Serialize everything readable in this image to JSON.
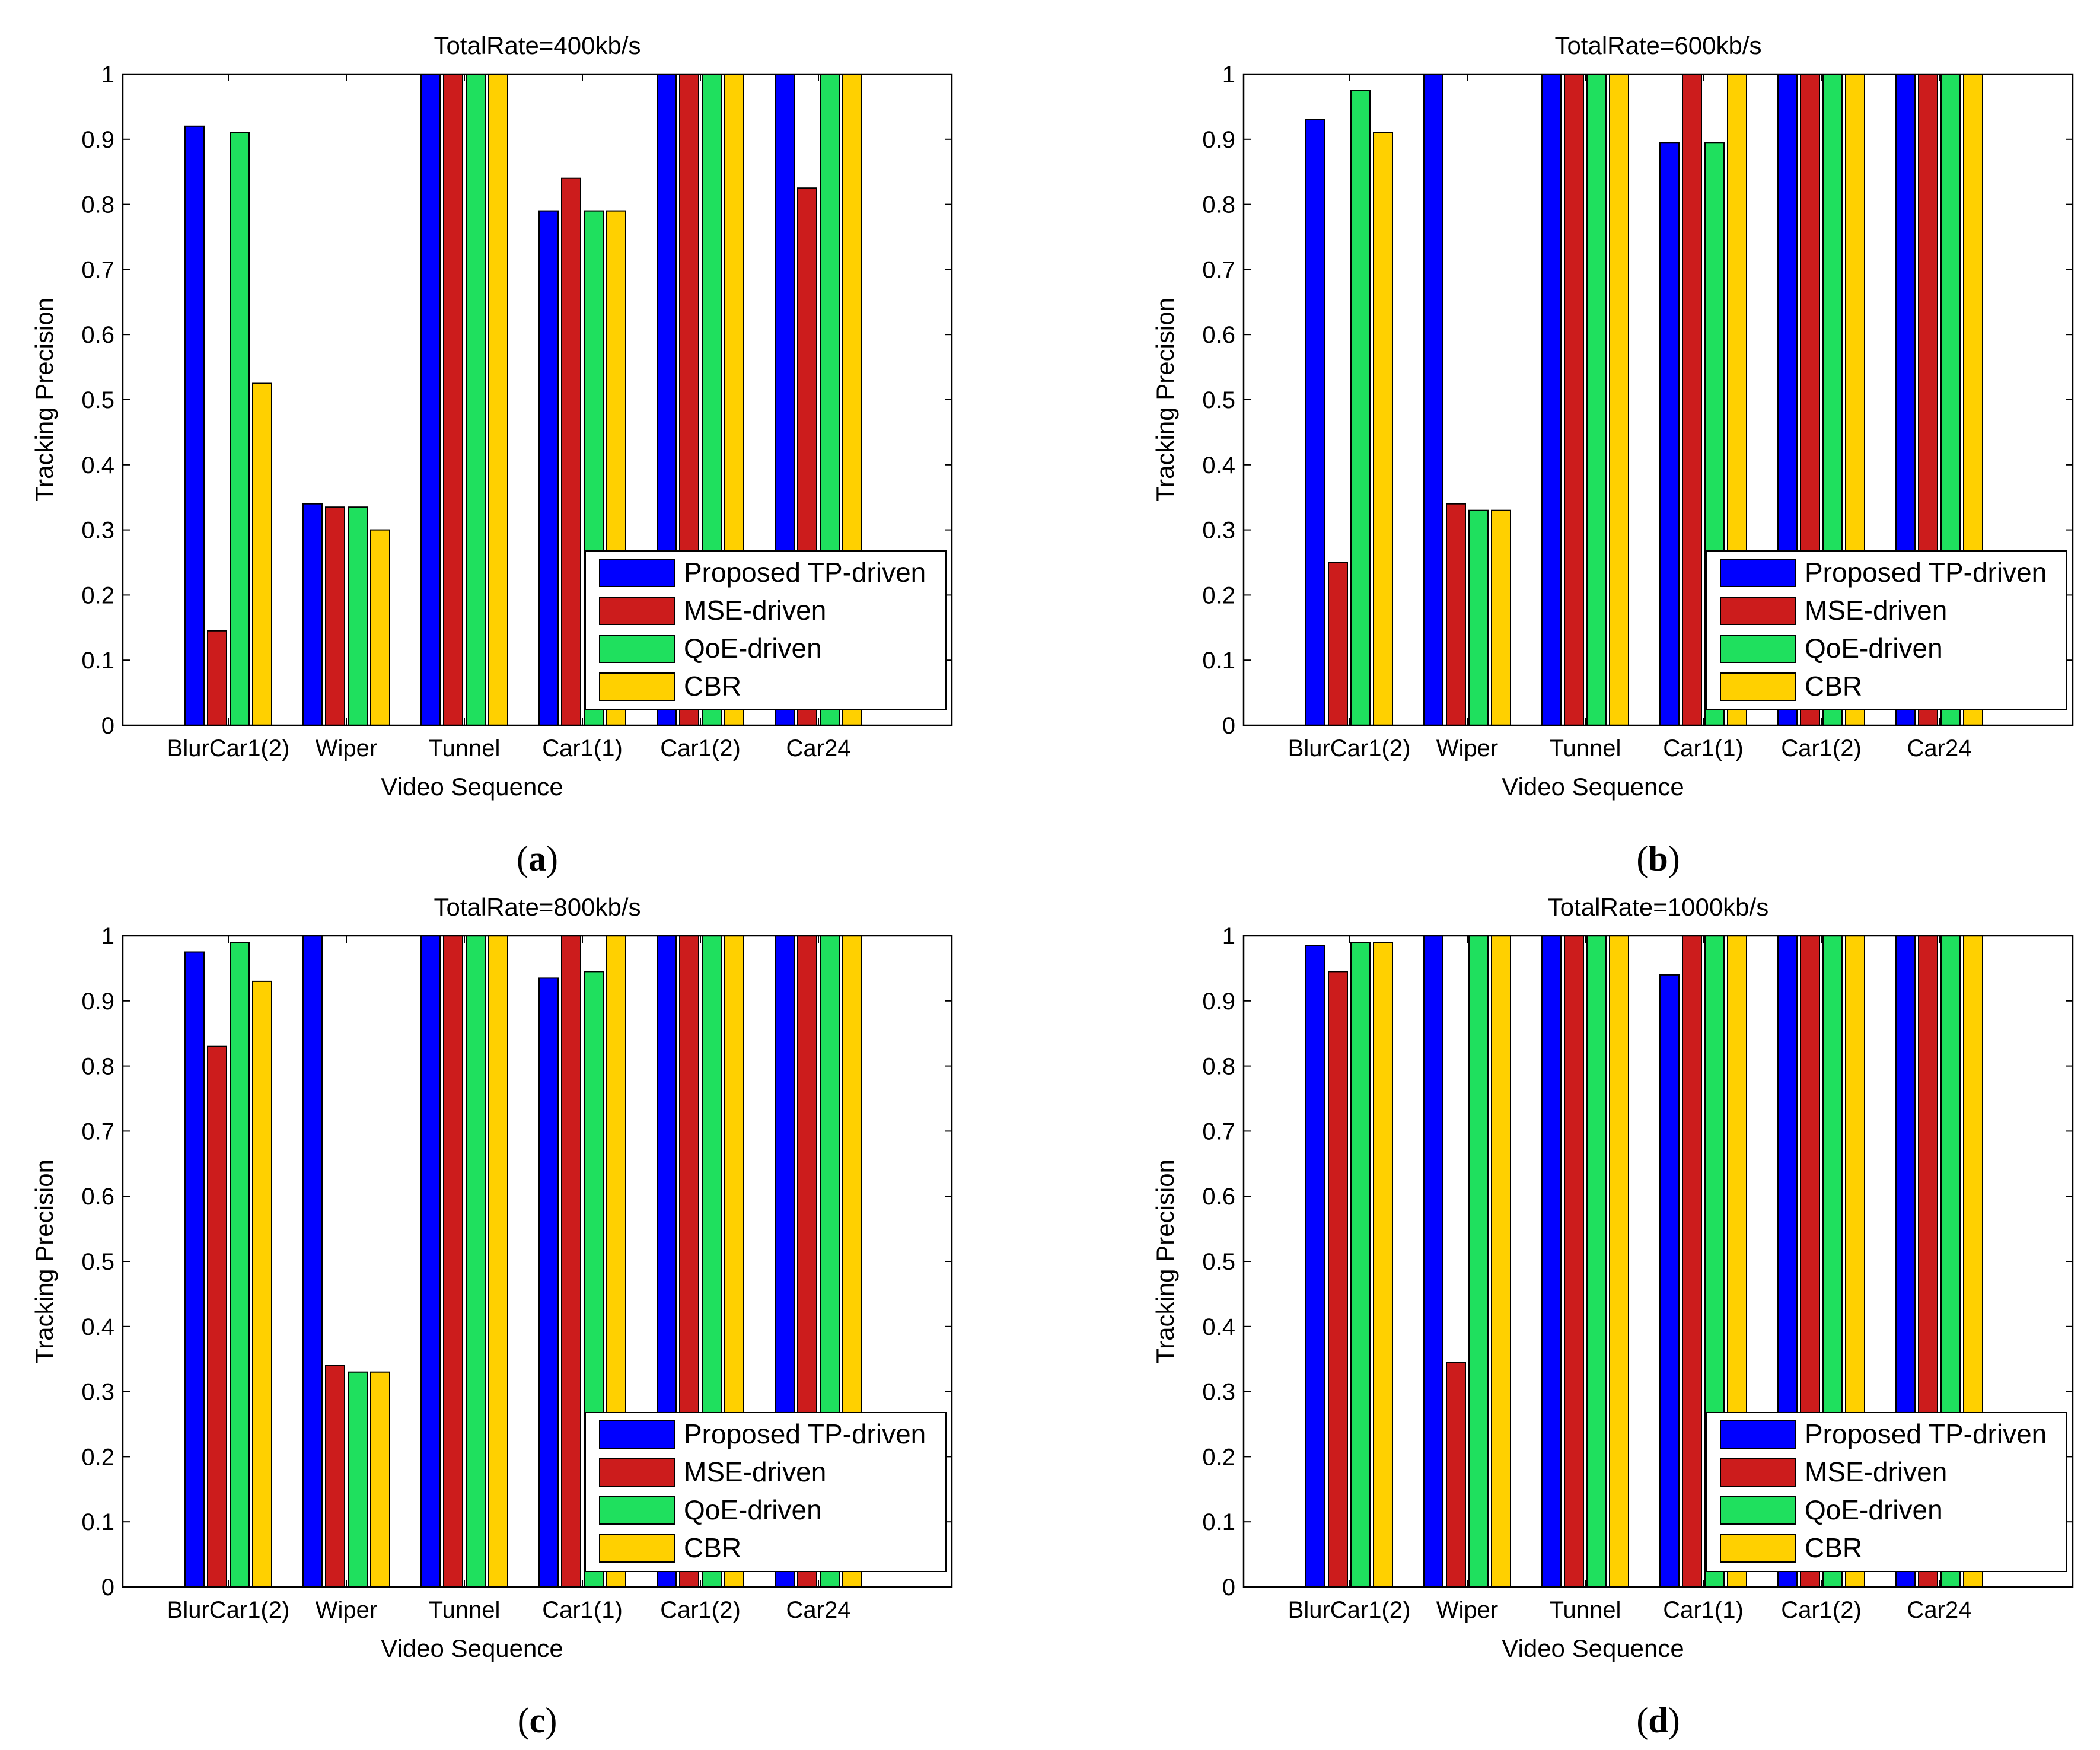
{
  "figure": {
    "series_colors": {
      "Proposed TP-driven": "#0000FF",
      "MSE-driven": "#CC1C1C",
      "QoE-driven": "#1FE05E",
      "CBR": "#FFD000"
    },
    "caption_open": "(",
    "caption_close": ")"
  },
  "chart_data": [
    {
      "panel": "a",
      "type": "bar",
      "title": "TotalRate=400kb/s",
      "xlabel": "Video Sequence",
      "ylabel": "Tracking Precision",
      "ylim": [
        0,
        1
      ],
      "yticks": [
        "0",
        "0.1",
        "0.2",
        "0.3",
        "0.4",
        "0.5",
        "0.6",
        "0.7",
        "0.8",
        "0.9",
        "1"
      ],
      "categories": [
        "BlurCar1(2)",
        "Wiper",
        "Tunnel",
        "Car1(1)",
        "Car1(2)",
        "Car24"
      ],
      "legend_position": "bottom-right",
      "series": [
        {
          "name": "Proposed TP-driven",
          "values": [
            0.92,
            0.34,
            1.0,
            0.79,
            1.0,
            1.0
          ]
        },
        {
          "name": "MSE-driven",
          "values": [
            0.145,
            0.335,
            1.0,
            0.84,
            1.0,
            0.825
          ]
        },
        {
          "name": "QoE-driven",
          "values": [
            0.91,
            0.335,
            1.0,
            0.79,
            1.0,
            1.0
          ]
        },
        {
          "name": "CBR",
          "values": [
            0.525,
            0.3,
            1.0,
            0.79,
            1.0,
            1.0
          ]
        }
      ]
    },
    {
      "panel": "b",
      "type": "bar",
      "title": "TotalRate=600kb/s",
      "xlabel": "Video Sequence",
      "ylabel": "Tracking Precision",
      "ylim": [
        0,
        1
      ],
      "yticks": [
        "0",
        "0.1",
        "0.2",
        "0.3",
        "0.4",
        "0.5",
        "0.6",
        "0.7",
        "0.8",
        "0.9",
        "1"
      ],
      "categories": [
        "BlurCar1(2)",
        "Wiper",
        "Tunnel",
        "Car1(1)",
        "Car1(2)",
        "Car24"
      ],
      "legend_position": "bottom-right",
      "series": [
        {
          "name": "Proposed TP-driven",
          "values": [
            0.93,
            1.0,
            1.0,
            0.895,
            1.0,
            1.0
          ]
        },
        {
          "name": "MSE-driven",
          "values": [
            0.25,
            0.34,
            1.0,
            1.0,
            1.0,
            1.0
          ]
        },
        {
          "name": "QoE-driven",
          "values": [
            0.975,
            0.33,
            1.0,
            0.895,
            1.0,
            1.0
          ]
        },
        {
          "name": "CBR",
          "values": [
            0.91,
            0.33,
            1.0,
            1.0,
            1.0,
            1.0
          ]
        }
      ]
    },
    {
      "panel": "c",
      "type": "bar",
      "title": "TotalRate=800kb/s",
      "xlabel": "Video Sequence",
      "ylabel": "Tracking Precision",
      "ylim": [
        0,
        1
      ],
      "yticks": [
        "0",
        "0.1",
        "0.2",
        "0.3",
        "0.4",
        "0.5",
        "0.6",
        "0.7",
        "0.8",
        "0.9",
        "1"
      ],
      "categories": [
        "BlurCar1(2)",
        "Wiper",
        "Tunnel",
        "Car1(1)",
        "Car1(2)",
        "Car24"
      ],
      "legend_position": "bottom-right",
      "series": [
        {
          "name": "Proposed TP-driven",
          "values": [
            0.975,
            1.0,
            1.0,
            0.935,
            1.0,
            1.0
          ]
        },
        {
          "name": "MSE-driven",
          "values": [
            0.83,
            0.34,
            1.0,
            1.0,
            1.0,
            1.0
          ]
        },
        {
          "name": "QoE-driven",
          "values": [
            0.99,
            0.33,
            1.0,
            0.945,
            1.0,
            1.0
          ]
        },
        {
          "name": "CBR",
          "values": [
            0.93,
            0.33,
            1.0,
            1.0,
            1.0,
            1.0
          ]
        }
      ]
    },
    {
      "panel": "d",
      "type": "bar",
      "title": "TotalRate=1000kb/s",
      "xlabel": "Video Sequence",
      "ylabel": "Tracking Precision",
      "ylim": [
        0,
        1
      ],
      "yticks": [
        "0",
        "0.1",
        "0.2",
        "0.3",
        "0.4",
        "0.5",
        "0.6",
        "0.7",
        "0.8",
        "0.9",
        "1"
      ],
      "categories": [
        "BlurCar1(2)",
        "Wiper",
        "Tunnel",
        "Car1(1)",
        "Car1(2)",
        "Car24"
      ],
      "legend_position": "bottom-right",
      "series": [
        {
          "name": "Proposed TP-driven",
          "values": [
            0.985,
            1.0,
            1.0,
            0.94,
            1.0,
            1.0
          ]
        },
        {
          "name": "MSE-driven",
          "values": [
            0.945,
            0.345,
            1.0,
            1.0,
            1.0,
            1.0
          ]
        },
        {
          "name": "QoE-driven",
          "values": [
            0.99,
            1.0,
            1.0,
            1.0,
            1.0,
            1.0
          ]
        },
        {
          "name": "CBR",
          "values": [
            0.99,
            1.0,
            1.0,
            1.0,
            1.0,
            1.0
          ]
        }
      ]
    }
  ]
}
